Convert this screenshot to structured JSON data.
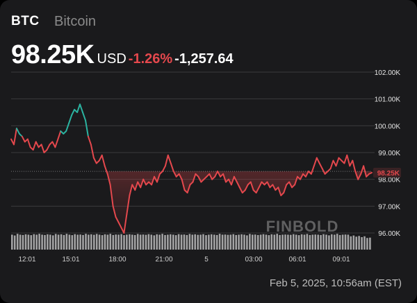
{
  "header": {
    "ticker": "BTC",
    "name": "Bitcoin",
    "price": "98.25K",
    "currency": "USD",
    "change_pct": "-1.26%",
    "change_abs": "-1,257.64"
  },
  "timestamp": "Feb 5, 2025, 10:56am (EST)",
  "watermark": "FINBOLD",
  "colors": {
    "background": "#1a1a1c",
    "up": "#2bb3a0",
    "down": "#e5484d",
    "grid": "#3a3a3d",
    "volume": "#bdbdbd"
  },
  "chart_data": {
    "type": "line",
    "x_tick_labels": [
      "12:01",
      "15:01",
      "18:00",
      "21:00",
      "5",
      "03:00",
      "06:01",
      "09:01"
    ],
    "y_tick_labels": [
      "102.00K",
      "101.00K",
      "100.00K",
      "99.00K",
      "98.00K",
      "97.00K",
      "96.00K"
    ],
    "ylim": [
      96,
      102
    ],
    "current_price_label": "98.25K",
    "current_price": 98.25,
    "baseline_value": 98.3,
    "grid": "horizontal",
    "series": [
      {
        "values": [
          99.5,
          99.3,
          99.9,
          99.7,
          99.6,
          99.4,
          99.5,
          99.2,
          99.1,
          99.4,
          99.2,
          99.3,
          99.0,
          99.1,
          99.3,
          99.4,
          99.2,
          99.5,
          99.8,
          99.7,
          99.8,
          100.1,
          100.4,
          100.6,
          100.5,
          100.8,
          100.5,
          100.2,
          99.6,
          99.3,
          98.8,
          98.6,
          98.7,
          98.9,
          98.5,
          98.2,
          97.8,
          97.0,
          96.6,
          96.4,
          96.2,
          96.0,
          96.7,
          97.4,
          97.8,
          97.6,
          97.9,
          97.7,
          98.0,
          97.8,
          97.9,
          97.8,
          98.1,
          97.9,
          98.2,
          98.3,
          98.5,
          98.9,
          98.6,
          98.3,
          98.1,
          98.2,
          98.0,
          97.6,
          97.5,
          97.8,
          97.9,
          98.2,
          98.1,
          97.9,
          98.0,
          98.1,
          98.2,
          98.0,
          98.1,
          98.3,
          98.1,
          98.2,
          97.9,
          98.0,
          97.8,
          98.1,
          97.9,
          97.7,
          97.5,
          97.6,
          97.8,
          97.9,
          97.6,
          97.5,
          97.7,
          97.9,
          97.8,
          97.9,
          97.7,
          97.8,
          97.6,
          97.7,
          97.4,
          97.5,
          97.8,
          97.9,
          97.7,
          97.8,
          98.1,
          98.0,
          98.2,
          98.1,
          98.3,
          98.2,
          98.5,
          98.8,
          98.6,
          98.4,
          98.2,
          98.3,
          98.4,
          98.7,
          98.5,
          98.8,
          98.7,
          98.6,
          98.9,
          98.5,
          98.7,
          98.3,
          98.0,
          98.2,
          98.5,
          98.1,
          98.2,
          98.25
        ]
      }
    ],
    "volume": [
      0.9,
      0.85,
      0.95,
      0.9,
      0.88,
      0.92,
      0.9,
      0.87,
      0.93,
      0.9,
      0.95,
      0.9,
      0.88,
      0.92,
      0.9,
      0.86,
      0.94,
      0.9,
      0.92,
      0.88,
      0.95,
      0.9,
      0.87,
      0.93,
      0.9,
      0.91,
      0.88,
      0.95,
      0.9,
      0.92,
      0.89,
      0.94,
      0.9,
      0.87,
      0.92,
      0.9,
      0.95,
      0.88,
      0.91,
      0.9,
      0.93,
      0.87,
      0.9,
      0.92,
      0.9,
      0.88,
      0.94,
      0.9,
      0.91,
      0.89,
      0.93,
      0.9,
      0.86,
      0.92,
      0.9,
      0.95,
      0.88,
      0.9,
      0.92,
      0.9,
      0.87,
      0.93,
      0.9,
      0.91,
      0.88,
      0.94,
      0.9,
      0.92,
      0.89,
      0.9,
      0.93,
      0.87,
      0.9,
      0.92,
      0.9,
      0.88,
      0.95,
      0.9,
      0.91,
      0.89,
      0.9,
      0.93,
      0.88,
      0.9,
      0.92,
      0.9,
      0.86,
      0.94,
      0.9,
      0.91,
      0.88,
      0.9,
      0.93,
      0.9,
      0.87,
      0.92,
      0.9,
      0.95,
      0.88,
      0.9,
      0.91,
      0.9,
      0.89,
      0.93,
      0.9,
      0.87,
      0.92,
      0.9,
      0.94,
      0.88,
      0.9,
      0.91,
      0.9,
      0.88,
      0.93,
      0.9,
      0.86,
      0.92,
      0.9,
      0.95,
      0.88,
      0.9,
      0.91,
      0.9,
      0.8,
      0.85,
      0.78,
      0.82,
      0.75,
      0.8,
      0.7,
      0.72
    ]
  }
}
